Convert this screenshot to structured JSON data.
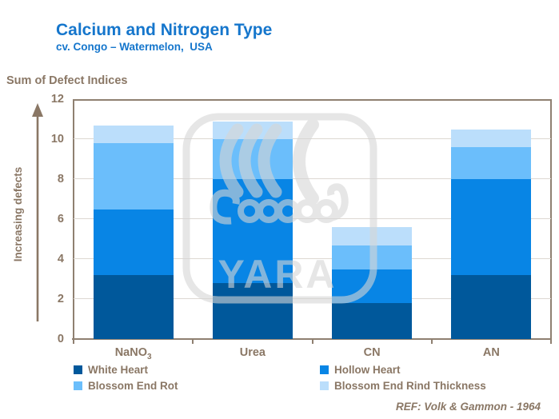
{
  "header": {
    "title": "Calcium and Nitrogen Type",
    "subtitle": "cv. Congo – Watermelon,  USA"
  },
  "y_axis": {
    "top_label": "Sum of Defect Indices",
    "side_label": "Increasing defects"
  },
  "footer": {
    "reference": "REF: Volk & Gammon - 1964"
  },
  "watermark_text": "YARA",
  "colors": {
    "title_blue": "#1576CC",
    "text_brown": "#8A7765",
    "axis_line": "#8F8071",
    "gridline": "#DDD8D2",
    "watermark_gray": "#D6D6D6",
    "white_heart": "#00589B",
    "hollow_heart": "#0885E5",
    "blossom_end_rot": "#6BBEFB",
    "rind_thickness": "#BBDEFB"
  },
  "chart_data": {
    "type": "bar",
    "stacked": true,
    "title": "Calcium and Nitrogen Type",
    "subtitle": "cv. Congo – Watermelon, USA",
    "ylabel": "Sum of Defect Indices / Increasing defects",
    "categories": [
      {
        "text": "NaNO",
        "sub": "3"
      },
      {
        "text": "Urea"
      },
      {
        "text": "CN"
      },
      {
        "text": "AN"
      }
    ],
    "series": [
      {
        "name": "White Heart",
        "color_key": "white_heart",
        "values": [
          3.2,
          2.8,
          1.8,
          3.2
        ]
      },
      {
        "name": "Hollow Heart",
        "color_key": "hollow_heart",
        "values": [
          3.3,
          5.2,
          1.7,
          4.8
        ]
      },
      {
        "name": "Blossom End Rot",
        "color_key": "blossom_end_rot",
        "values": [
          3.3,
          2.0,
          1.2,
          1.6
        ]
      },
      {
        "name": "Blossom End Rind Thickness",
        "color_key": "rind_thickness",
        "values": [
          0.9,
          0.9,
          0.9,
          0.9
        ]
      }
    ],
    "totals": [
      10.7,
      10.9,
      5.6,
      10.5
    ],
    "ylim": [
      0,
      12
    ],
    "yticks": [
      0,
      2,
      4,
      6,
      8,
      10,
      12
    ],
    "grid": true,
    "legend_position": "bottom"
  },
  "legend": {
    "items": [
      {
        "label": "White Heart",
        "color_key": "white_heart"
      },
      {
        "label": "Hollow Heart",
        "color_key": "hollow_heart"
      },
      {
        "label": "Blossom End Rot",
        "color_key": "blossom_end_rot"
      },
      {
        "label": "Blossom End Rind Thickness",
        "color_key": "rind_thickness"
      }
    ]
  }
}
